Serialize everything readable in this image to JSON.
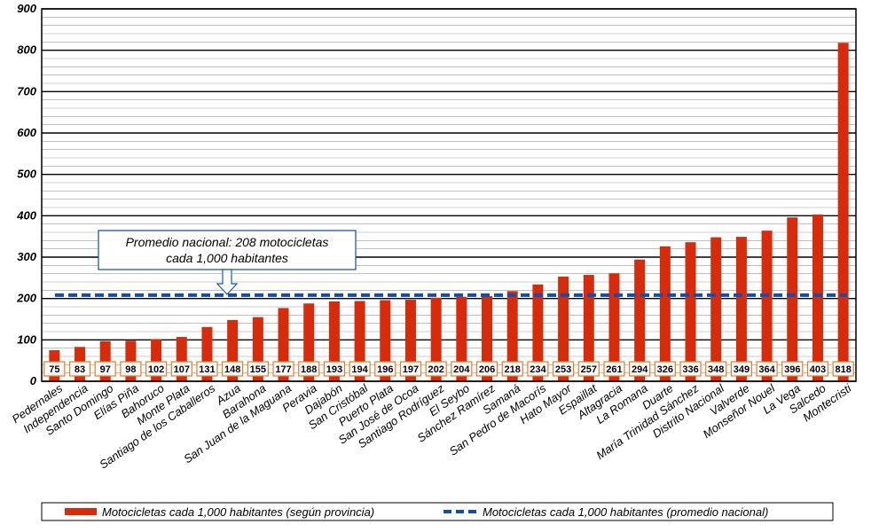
{
  "chart_data": {
    "type": "bar",
    "categories": [
      "Pedernales",
      "Independencia",
      "Santo Domingo",
      "Elías Piña",
      "Bahoruco",
      "Monte Plata",
      "Santiago de los Caballeros",
      "Azua",
      "Barahona",
      "San Juan de la Maguana",
      "Peravia",
      "Dajabón",
      "San Cristóbal",
      "Puerto Plata",
      "San José de Ocoa",
      "Santiago Rodríguez",
      "El Seybo",
      "Sánchez Ramírez",
      "Samaná",
      "San Pedro de Macorís",
      "Hato Mayor",
      "Espaillat",
      "Altagracia",
      "La Romana",
      "Duarte",
      "María Trinidad Sánchez",
      "Distrito Nacional",
      "Valverde",
      "Monseñor Nouel",
      "La Vega",
      "Salcedo",
      "Montecristi"
    ],
    "values": [
      75,
      83,
      97,
      98,
      102,
      107,
      131,
      148,
      155,
      177,
      188,
      193,
      194,
      196,
      197,
      202,
      204,
      206,
      218,
      234,
      253,
      257,
      261,
      294,
      326,
      336,
      348,
      349,
      364,
      396,
      403,
      818
    ],
    "value_labels": [
      "75",
      "83",
      "97",
      "98",
      "102",
      "107",
      "131",
      "148",
      "155",
      "177",
      "188",
      "193",
      "194",
      "196",
      "197",
      "202",
      "204",
      "206",
      "218",
      "234",
      "253",
      "257",
      "261",
      "294",
      "326",
      "336",
      "348",
      "349",
      "364",
      "396",
      "403",
      "818"
    ],
    "ylim": [
      0,
      900
    ],
    "yticks": [
      "0",
      "100",
      "200",
      "300",
      "400",
      "500",
      "600",
      "700",
      "800",
      "900"
    ],
    "major_step": 100,
    "minor_step": 20,
    "grid": true,
    "reference_line": {
      "value": 208
    },
    "callout": {
      "line1": "Promedio nacional: 208 motocicletas",
      "line2": "cada 1,000 habitantes"
    },
    "legend": {
      "placement": "bottom",
      "bar_label": "Motocicletas cada 1,000 habitantes (según provincia)",
      "line_label": "Motocicletas cada 1,000 habitantes (promedio nacional)"
    },
    "colors": {
      "bar": "#d72b0c",
      "line": "#0f4fb4",
      "label_box_border": "#f07820",
      "callout_border": "#1e5aa8"
    }
  }
}
